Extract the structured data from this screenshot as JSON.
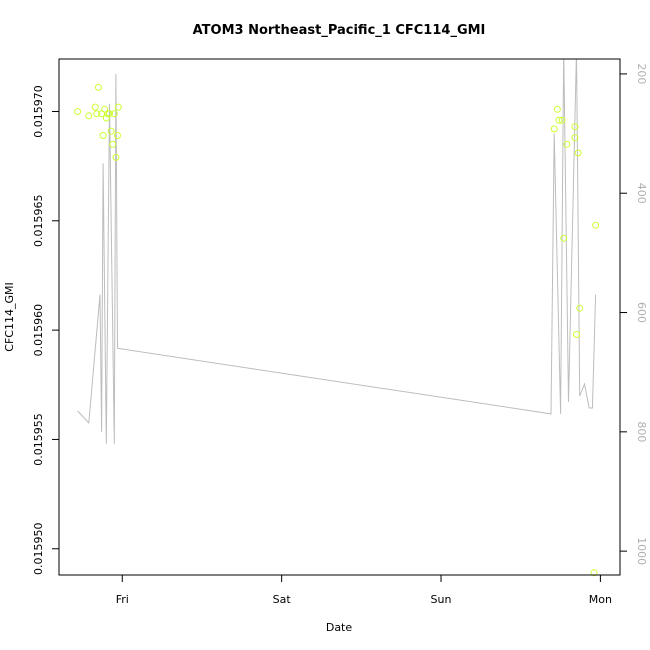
{
  "chart_data": {
    "type": "scatter",
    "title": "ATOM3 Northeast_Pacific_1 CFC114_GMI",
    "xlabel": "Date",
    "ylabel": "CFC114_GMI",
    "x_unit": "days since Thursday 00:00",
    "xlim": [
      0.603,
      4.123
    ],
    "ylim": [
      0.0159488,
      0.0159724
    ],
    "x_ticks": [
      {
        "value": 1,
        "label": "Fri"
      },
      {
        "value": 2,
        "label": "Sat"
      },
      {
        "value": 3,
        "label": "Sun"
      },
      {
        "value": 4,
        "label": "Mon"
      }
    ],
    "y_ticks": [
      {
        "value": 0.01595,
        "label": "0.015950"
      },
      {
        "value": 0.015955,
        "label": "0.015955"
      },
      {
        "value": 0.01596,
        "label": "0.015960"
      },
      {
        "value": 0.015965,
        "label": "0.015965"
      },
      {
        "value": 0.01597,
        "label": "0.015970"
      }
    ],
    "y2lim": [
      1040,
      175
    ],
    "y2_ticks": [
      {
        "value": 200,
        "label": "200"
      },
      {
        "value": 400,
        "label": "400"
      },
      {
        "value": 600,
        "label": "600"
      },
      {
        "value": 800,
        "label": "800"
      },
      {
        "value": 1000,
        "label": "1000"
      }
    ],
    "points": [
      {
        "x": 0.72,
        "y": 0.01597
      },
      {
        "x": 0.79,
        "y": 0.0159698
      },
      {
        "x": 0.83,
        "y": 0.0159702
      },
      {
        "x": 0.84,
        "y": 0.0159699
      },
      {
        "x": 0.85,
        "y": 0.0159711
      },
      {
        "x": 0.87,
        "y": 0.0159699
      },
      {
        "x": 0.88,
        "y": 0.0159689
      },
      {
        "x": 0.89,
        "y": 0.0159701
      },
      {
        "x": 0.9,
        "y": 0.0159697
      },
      {
        "x": 0.91,
        "y": 0.0159699
      },
      {
        "x": 0.92,
        "y": 0.0159699
      },
      {
        "x": 0.93,
        "y": 0.0159691
      },
      {
        "x": 0.94,
        "y": 0.0159685
      },
      {
        "x": 0.95,
        "y": 0.0159699
      },
      {
        "x": 0.96,
        "y": 0.0159679
      },
      {
        "x": 0.97,
        "y": 0.0159689
      },
      {
        "x": 0.975,
        "y": 0.0159702
      },
      {
        "x": 3.71,
        "y": 0.0159692
      },
      {
        "x": 3.73,
        "y": 0.0159701
      },
      {
        "x": 3.74,
        "y": 0.0159696
      },
      {
        "x": 3.76,
        "y": 0.0159696
      },
      {
        "x": 3.77,
        "y": 0.0159642
      },
      {
        "x": 3.79,
        "y": 0.0159685
      },
      {
        "x": 3.84,
        "y": 0.0159688
      },
      {
        "x": 3.84,
        "y": 0.0159693
      },
      {
        "x": 3.86,
        "y": 0.0159681
      },
      {
        "x": 3.85,
        "y": 0.0159598
      },
      {
        "x": 3.87,
        "y": 0.015961
      },
      {
        "x": 3.97,
        "y": 0.0159648
      },
      {
        "x": 3.96,
        "y": 0.0159489
      }
    ],
    "point_color": "#ccff33",
    "pressure_series": {
      "axis": "right",
      "color": "#bdbdbd",
      "x": [
        0.72,
        0.79,
        0.86,
        0.87,
        0.88,
        0.9,
        0.92,
        0.95,
        0.96,
        0.97,
        3.69,
        3.71,
        3.75,
        3.77,
        3.8,
        3.85,
        3.87,
        3.9,
        3.93,
        3.95,
        3.97
      ],
      "y": [
        765,
        785,
        570,
        800,
        350,
        820,
        250,
        820,
        200,
        660,
        770,
        300,
        770,
        160,
        750,
        160,
        740,
        720,
        760,
        760,
        570
      ]
    }
  }
}
